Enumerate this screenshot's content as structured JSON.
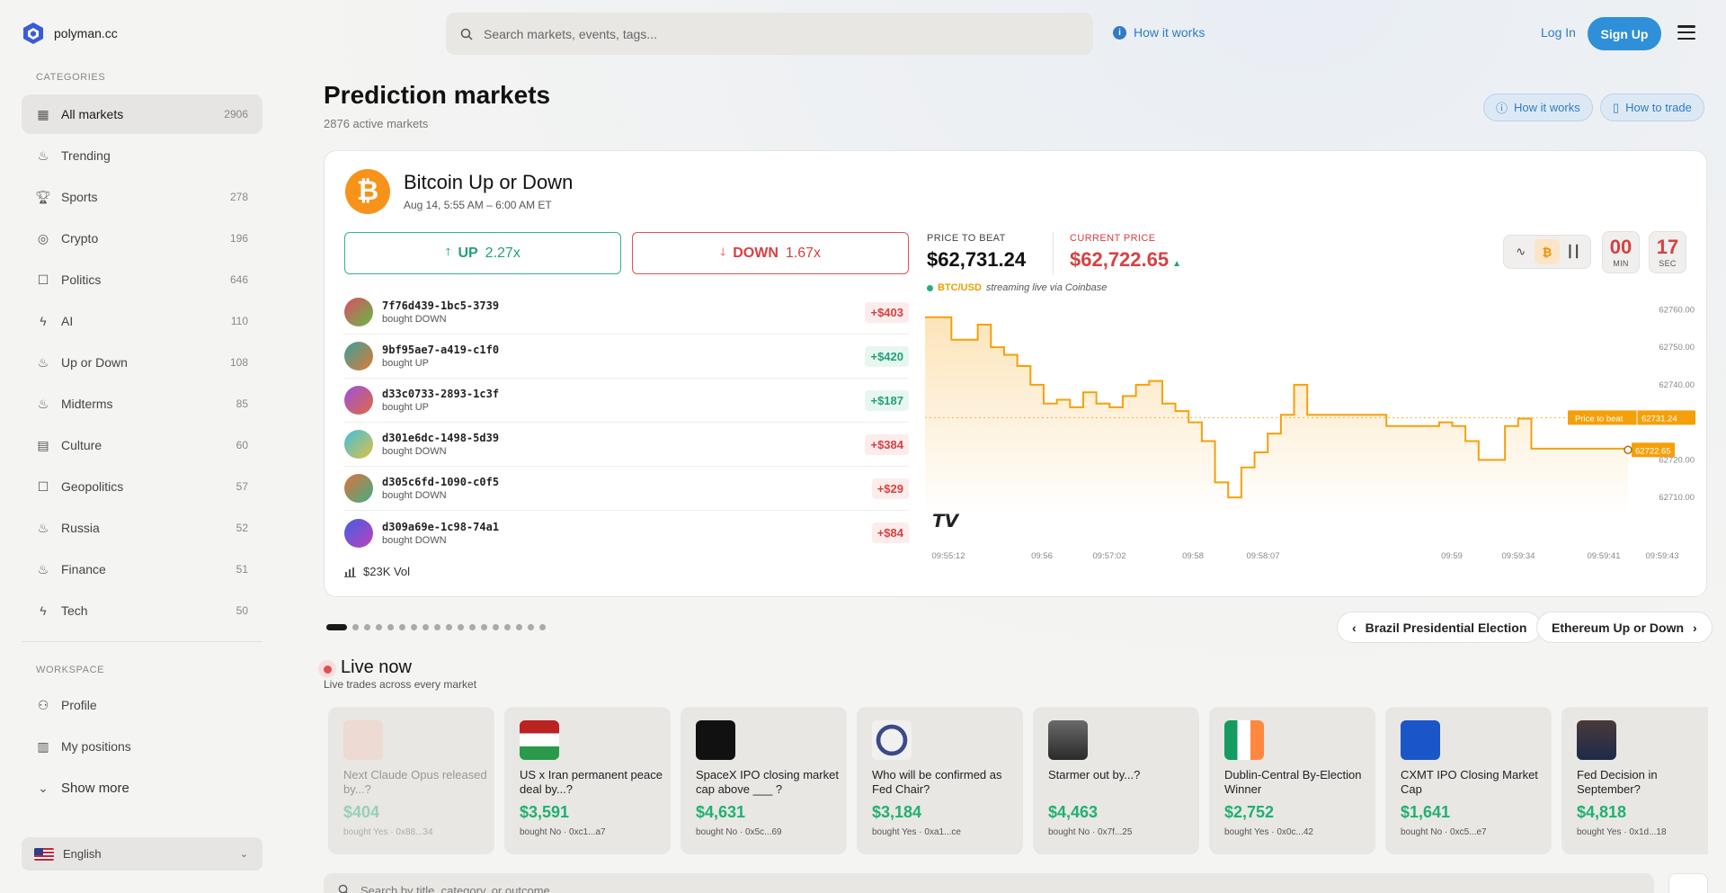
{
  "brand": {
    "name": "polyman.cc"
  },
  "header": {
    "search_placeholder": "Search markets, events, tags...",
    "how_it_works": "How it works",
    "login": "Log In",
    "signup": "Sign Up"
  },
  "sidebar": {
    "categories_heading": "CATEGORIES",
    "categories": [
      {
        "label": "All markets",
        "count": "2906",
        "icon": "grid-icon",
        "active": true
      },
      {
        "label": "Trending",
        "count": "",
        "icon": "flame-icon"
      },
      {
        "label": "Sports",
        "count": "278",
        "icon": "trophy-icon"
      },
      {
        "label": "Crypto",
        "count": "196",
        "icon": "coins-icon"
      },
      {
        "label": "Politics",
        "count": "646",
        "icon": "ballot-icon"
      },
      {
        "label": "AI",
        "count": "110",
        "icon": "bolt-icon"
      },
      {
        "label": "Up or Down",
        "count": "108",
        "icon": "flame-icon"
      },
      {
        "label": "Midterms",
        "count": "85",
        "icon": "flame-icon"
      },
      {
        "label": "Culture",
        "count": "60",
        "icon": "film-icon"
      },
      {
        "label": "Geopolitics",
        "count": "57",
        "icon": "ballot-icon"
      },
      {
        "label": "Russia",
        "count": "52",
        "icon": "flame-icon"
      },
      {
        "label": "Finance",
        "count": "51",
        "icon": "flame-icon"
      },
      {
        "label": "Tech",
        "count": "50",
        "icon": "bolt-icon"
      }
    ],
    "workspace_heading": "WORKSPACE",
    "workspace": [
      {
        "label": "Profile",
        "icon": "user-icon"
      },
      {
        "label": "My positions",
        "icon": "bar-chart-icon"
      },
      {
        "label": "Show more",
        "icon": "chevron-down-icon"
      }
    ],
    "language": "English"
  },
  "main": {
    "title": "Prediction markets",
    "subtitle": "2876 active markets",
    "how_it_works": "How it works",
    "how_to_trade": "How to trade"
  },
  "featured": {
    "title": "Bitcoin Up or Down",
    "date": "Aug 14, 5:55 AM – 6:00 AM ET",
    "up_label": "UP",
    "up_mult": "2.27x",
    "down_label": "DOWN",
    "down_mult": "1.67x",
    "trades": [
      {
        "id": "7f76d439-1bc5-3739",
        "action": "bought DOWN",
        "amount": "+$403",
        "side": "down",
        "colors": [
          "#e0486a",
          "#60c040"
        ]
      },
      {
        "id": "9bf95ae7-a419-c1f0",
        "action": "bought UP",
        "amount": "+$420",
        "side": "up",
        "colors": [
          "#3aa0a0",
          "#e07a30"
        ]
      },
      {
        "id": "d33c0733-2893-1c3f",
        "action": "bought UP",
        "amount": "+$187",
        "side": "up",
        "colors": [
          "#9b50e0",
          "#e06a40"
        ]
      },
      {
        "id": "d301e6dc-1498-5d39",
        "action": "bought DOWN",
        "amount": "+$384",
        "side": "down",
        "colors": [
          "#40c0e0",
          "#e0c040"
        ]
      },
      {
        "id": "d305c6fd-1090-c0f5",
        "action": "bought DOWN",
        "amount": "+$29",
        "side": "down",
        "colors": [
          "#e07040",
          "#40b080"
        ]
      },
      {
        "id": "d309a69e-1c98-74a1",
        "action": "bought DOWN",
        "amount": "+$84",
        "side": "down",
        "colors": [
          "#4060e0",
          "#c040c0"
        ]
      }
    ],
    "volume": "$23K Vol",
    "price_to_beat_label": "PRICE TO BEAT",
    "price_to_beat": "$62,731.24",
    "current_price_label": "CURRENT PRICE",
    "current_price": "$62,722.65",
    "pair": "BTC/USD",
    "stream_note": "streaming live via Coinbase",
    "timer": {
      "min": "00",
      "min_label": "MIN",
      "sec": "17",
      "sec_label": "SEC"
    },
    "tools": [
      {
        "name": "line-chart-icon",
        "glyph": "∿"
      },
      {
        "name": "bitcoin-icon",
        "glyph": "₿"
      },
      {
        "name": "candles-icon",
        "glyph": "┃┃"
      }
    ],
    "accent": "#f5a00a"
  },
  "chart_data": {
    "type": "line",
    "series": [
      {
        "values": [
          [
            0,
            62758
          ],
          [
            0.3,
            62758
          ],
          [
            0.6,
            62752
          ],
          [
            0.9,
            62752
          ],
          [
            1.2,
            62756
          ],
          [
            1.5,
            62750
          ],
          [
            1.8,
            62748
          ],
          [
            2.1,
            62745
          ],
          [
            2.4,
            62740
          ],
          [
            2.7,
            62735
          ],
          [
            3.0,
            62736
          ],
          [
            3.3,
            62734
          ],
          [
            3.6,
            62738
          ],
          [
            3.9,
            62735
          ],
          [
            4.2,
            62734
          ],
          [
            4.5,
            62737
          ],
          [
            4.8,
            62740
          ],
          [
            5.1,
            62741
          ],
          [
            5.4,
            62735
          ],
          [
            5.7,
            62733
          ],
          [
            6.0,
            62730
          ],
          [
            6.3,
            62725
          ],
          [
            6.6,
            62714
          ],
          [
            6.9,
            62710
          ],
          [
            7.2,
            62718
          ],
          [
            7.5,
            62722
          ],
          [
            7.8,
            62727
          ],
          [
            8.1,
            62732
          ],
          [
            8.4,
            62740
          ],
          [
            8.7,
            62732
          ],
          [
            9.0,
            62732
          ],
          [
            9.3,
            62732
          ],
          [
            9.6,
            62732
          ],
          [
            9.9,
            62732
          ],
          [
            10.2,
            62732
          ],
          [
            10.5,
            62729
          ],
          [
            10.8,
            62729
          ],
          [
            11.1,
            62729
          ],
          [
            11.4,
            62729
          ],
          [
            11.7,
            62730
          ],
          [
            12.0,
            62729
          ],
          [
            12.3,
            62725
          ],
          [
            12.6,
            62720
          ],
          [
            12.9,
            62720
          ],
          [
            13.2,
            62729
          ],
          [
            13.5,
            62731
          ],
          [
            13.8,
            62723
          ],
          [
            14.1,
            62723
          ],
          [
            14.4,
            62723
          ],
          [
            14.7,
            62723
          ],
          [
            15.0,
            62723
          ],
          [
            15.3,
            62723
          ],
          [
            15.6,
            62723
          ],
          [
            16.0,
            62722.65
          ]
        ]
      }
    ],
    "x_tick_labels": [
      "09:55:12",
      "09:56",
      "09:57:02",
      "09:58",
      "09:58:07",
      "09:59",
      "09:59:34",
      "09:59:41",
      "09:59:43"
    ],
    "y_ticks": [
      "62760.00",
      "62750.00",
      "62740.00",
      "62720.00",
      "62710.00"
    ],
    "ylim": [
      62705,
      62762
    ],
    "reference_line": {
      "label": "Price to beat",
      "value": "62731.24"
    },
    "last_value_label": "62722.65",
    "grid": false
  },
  "carousel": {
    "dot_count": 18,
    "active_dot": 0,
    "prev": "Brazil Presidential Election",
    "next": "Ethereum Up or Down"
  },
  "live": {
    "title": "Live now",
    "subtitle": "Live trades across every market",
    "cards": [
      {
        "name": "Next Claude Opus released by...?",
        "amount": "$404",
        "meta": "bought Yes · 0x88...34",
        "faded": true,
        "img": "claude"
      },
      {
        "name": "US x Iran permanent peace deal by...?",
        "amount": "$3,591",
        "meta": "bought No · 0xc1...a7",
        "img": "flags"
      },
      {
        "name": "SpaceX IPO closing market cap above ___ ?",
        "amount": "$4,631",
        "meta": "bought No · 0x5c...69",
        "img": "spacex"
      },
      {
        "name": "Who will be confirmed as Fed Chair?",
        "amount": "$3,184",
        "meta": "bought Yes · 0xa1...ce",
        "img": "seal"
      },
      {
        "name": "Starmer out by...?",
        "amount": "$4,463",
        "meta": "bought No · 0x7f...25",
        "img": "portrait"
      },
      {
        "name": "Dublin-Central By-Election Winner",
        "amount": "$2,752",
        "meta": "bought Yes · 0x0c...42",
        "img": "ireland"
      },
      {
        "name": "CXMT IPO Closing Market Cap",
        "amount": "$1,641",
        "meta": "bought No · 0xc5...e7",
        "img": "cxmt"
      },
      {
        "name": "Fed Decision in September?",
        "amount": "$4,818",
        "meta": "bought Yes · 0x1d...18",
        "img": "portrait2"
      }
    ]
  },
  "bottom_search": {
    "placeholder": "Search by title, category, or outcome"
  }
}
